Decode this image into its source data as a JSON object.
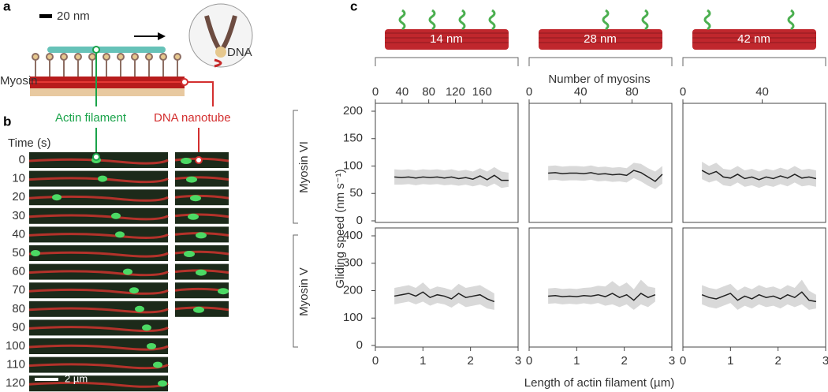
{
  "panel_labels": [
    "a",
    "b",
    "c"
  ],
  "panel_a": {
    "scale_bar": "20 nm",
    "myosin_label": "Myosin",
    "dna_label": "DNA",
    "actin_label": "Actin filament",
    "nanotube_label": "DNA nanotube"
  },
  "panel_b": {
    "time_label": "Time (s)",
    "times": [
      0,
      10,
      20,
      30,
      40,
      50,
      60,
      70,
      80,
      90,
      100,
      110,
      120
    ],
    "scale_bar": "2 µm"
  },
  "spacings": [
    "14 nm",
    "28 nm",
    "42 nm"
  ],
  "shared": {
    "top_axis_label": "Number of myosins",
    "y_label": "Gliding speed (nm s⁻¹)",
    "x_label": "Length of actin filament (µm)",
    "row_labels": [
      "Myosin VI",
      "Myosin V"
    ]
  },
  "chart_data": [
    {
      "type": "line",
      "x": [
        0.4,
        0.55,
        0.7,
        0.85,
        1.0,
        1.15,
        1.3,
        1.45,
        1.6,
        1.75,
        1.9,
        2.05,
        2.2,
        2.35,
        2.5,
        2.65,
        2.8
      ],
      "series": [
        {
          "color": "#222222",
          "band_color": "#d9d9d9",
          "values": [
            80,
            79,
            80,
            78,
            80,
            79,
            80,
            78,
            80,
            77,
            79,
            76,
            82,
            75,
            83,
            74,
            74
          ],
          "band_low": [
            66,
            66,
            67,
            65,
            67,
            66,
            67,
            65,
            66,
            64,
            66,
            63,
            66,
            62,
            68,
            60,
            62
          ],
          "band_high": [
            94,
            93,
            94,
            92,
            94,
            93,
            94,
            92,
            94,
            91,
            93,
            90,
            96,
            90,
            98,
            90,
            88
          ]
        }
      ],
      "xlim": [
        0,
        3
      ],
      "ylim": [
        0,
        200
      ],
      "yticks": [
        0,
        50,
        100,
        150,
        200
      ],
      "x2lim": [
        0,
        214
      ],
      "x2ticks": [
        0,
        40,
        80,
        120,
        160
      ]
    },
    {
      "type": "line",
      "x": [
        0.4,
        0.55,
        0.7,
        0.85,
        1.0,
        1.15,
        1.3,
        1.45,
        1.6,
        1.75,
        1.9,
        2.05,
        2.2,
        2.35,
        2.5,
        2.65,
        2.8
      ],
      "series": [
        {
          "color": "#222222",
          "band_color": "#d9d9d9",
          "values": [
            87,
            88,
            86,
            87,
            87,
            86,
            88,
            85,
            86,
            84,
            85,
            83,
            92,
            88,
            80,
            72,
            85
          ],
          "band_low": [
            74,
            75,
            73,
            74,
            74,
            73,
            75,
            72,
            73,
            71,
            72,
            70,
            78,
            72,
            64,
            58,
            68
          ],
          "band_high": [
            100,
            101,
            99,
            100,
            100,
            99,
            101,
            98,
            99,
            97,
            98,
            96,
            106,
            104,
            96,
            90,
            100
          ]
        }
      ],
      "xlim": [
        0,
        3
      ],
      "ylim": [
        0,
        200
      ],
      "x2lim": [
        0,
        111
      ],
      "x2ticks": [
        0,
        40,
        80
      ]
    },
    {
      "type": "line",
      "x": [
        0.4,
        0.55,
        0.7,
        0.85,
        1.0,
        1.15,
        1.3,
        1.45,
        1.6,
        1.75,
        1.9,
        2.05,
        2.2,
        2.35,
        2.5,
        2.65,
        2.8
      ],
      "series": [
        {
          "color": "#222222",
          "band_color": "#d9d9d9",
          "values": [
            92,
            85,
            90,
            80,
            78,
            85,
            77,
            80,
            75,
            80,
            77,
            82,
            78,
            85,
            78,
            80,
            77
          ],
          "band_low": [
            76,
            70,
            74,
            65,
            63,
            70,
            62,
            65,
            60,
            65,
            62,
            67,
            63,
            70,
            63,
            65,
            62
          ],
          "band_high": [
            108,
            100,
            106,
            95,
            93,
            100,
            92,
            95,
            90,
            95,
            92,
            97,
            93,
            100,
            93,
            95,
            92
          ]
        }
      ],
      "xlim": [
        0,
        3
      ],
      "ylim": [
        0,
        200
      ],
      "x2lim": [
        0,
        72
      ],
      "x2ticks": [
        0,
        40
      ]
    },
    {
      "type": "line",
      "x": [
        0.4,
        0.55,
        0.7,
        0.85,
        1.0,
        1.15,
        1.3,
        1.45,
        1.6,
        1.75,
        1.9,
        2.05,
        2.2,
        2.35,
        2.5
      ],
      "series": [
        {
          "color": "#222222",
          "band_color": "#d9d9d9",
          "values": [
            180,
            185,
            190,
            180,
            195,
            175,
            185,
            180,
            170,
            190,
            175,
            180,
            185,
            170,
            160
          ],
          "band_low": [
            150,
            155,
            160,
            150,
            160,
            145,
            155,
            150,
            138,
            155,
            140,
            145,
            150,
            135,
            130
          ],
          "band_high": [
            210,
            215,
            220,
            210,
            230,
            205,
            215,
            210,
            202,
            225,
            210,
            215,
            220,
            205,
            190
          ]
        }
      ],
      "xlim": [
        0,
        3
      ],
      "ylim": [
        0,
        400
      ],
      "yticks": [
        0,
        100,
        200,
        300,
        400
      ],
      "xticks": [
        0,
        1,
        2,
        3
      ]
    },
    {
      "type": "line",
      "x": [
        0.4,
        0.55,
        0.7,
        0.85,
        1.0,
        1.15,
        1.3,
        1.45,
        1.6,
        1.75,
        1.9,
        2.05,
        2.2,
        2.35,
        2.5,
        2.65
      ],
      "series": [
        {
          "color": "#222222",
          "band_color": "#d9d9d9",
          "values": [
            180,
            182,
            178,
            180,
            178,
            182,
            180,
            185,
            178,
            190,
            175,
            185,
            165,
            190,
            175,
            185
          ],
          "band_low": [
            152,
            154,
            150,
            152,
            150,
            154,
            150,
            155,
            145,
            150,
            140,
            150,
            130,
            150,
            140,
            160
          ],
          "band_high": [
            208,
            210,
            206,
            208,
            206,
            210,
            212,
            218,
            215,
            235,
            215,
            230,
            205,
            240,
            215,
            210
          ]
        }
      ],
      "xlim": [
        0,
        3
      ],
      "ylim": [
        0,
        400
      ],
      "xticks": [
        0,
        1,
        2,
        3
      ]
    },
    {
      "type": "line",
      "x": [
        0.4,
        0.55,
        0.7,
        0.85,
        1.0,
        1.15,
        1.3,
        1.45,
        1.6,
        1.75,
        1.9,
        2.05,
        2.2,
        2.35,
        2.5,
        2.65,
        2.8
      ],
      "series": [
        {
          "color": "#222222",
          "band_color": "#d9d9d9",
          "values": [
            185,
            175,
            170,
            180,
            190,
            165,
            180,
            170,
            185,
            175,
            180,
            170,
            185,
            175,
            195,
            165,
            160
          ],
          "band_low": [
            150,
            140,
            135,
            145,
            155,
            130,
            145,
            135,
            150,
            140,
            145,
            135,
            150,
            140,
            150,
            130,
            135
          ],
          "band_high": [
            220,
            210,
            205,
            215,
            225,
            200,
            215,
            205,
            220,
            210,
            215,
            205,
            220,
            210,
            240,
            200,
            185
          ]
        }
      ],
      "xlim": [
        0,
        3
      ],
      "ylim": [
        0,
        400
      ],
      "xticks": [
        0,
        1,
        2,
        3
      ]
    }
  ]
}
